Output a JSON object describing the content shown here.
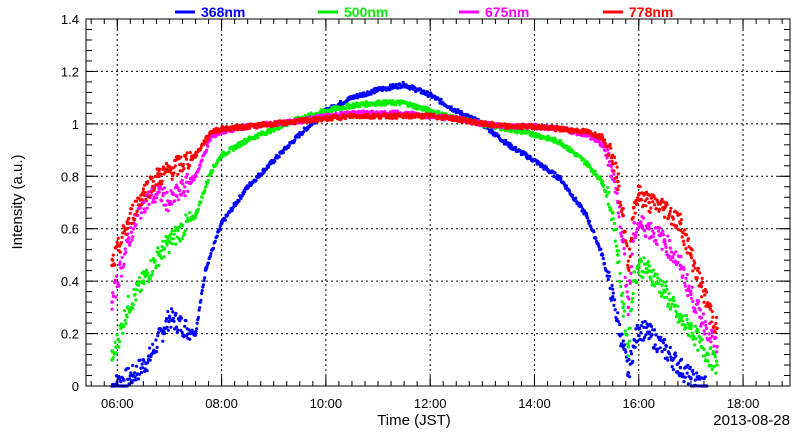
{
  "chart_data": {
    "type": "scatter",
    "title": "",
    "xlabel": "Time (JST)",
    "ylabel": "Intensity (a.u.)",
    "annotation": "2013-08-28",
    "xlim": [
      5.4,
      18.9
    ],
    "ylim": [
      0,
      1.4
    ],
    "x_ticks": [
      {
        "value": 6,
        "label": "06:00"
      },
      {
        "value": 8,
        "label": "08:00"
      },
      {
        "value": 10,
        "label": "10:00"
      },
      {
        "value": 12,
        "label": "12:00"
      },
      {
        "value": 14,
        "label": "14:00"
      },
      {
        "value": 16,
        "label": "16:00"
      },
      {
        "value": 18,
        "label": "18:00"
      }
    ],
    "y_ticks": [
      {
        "value": 0,
        "label": "0"
      },
      {
        "value": 0.2,
        "label": "0.2"
      },
      {
        "value": 0.4,
        "label": "0.4"
      },
      {
        "value": 0.6,
        "label": "0.6"
      },
      {
        "value": 0.8,
        "label": "0.8"
      },
      {
        "value": 1,
        "label": "1"
      },
      {
        "value": 1.2,
        "label": "1.2"
      },
      {
        "value": 1.4,
        "label": "1.4"
      }
    ],
    "grid": true,
    "legend_position": "top",
    "series": [
      {
        "name": "368nm",
        "color": "#0000ff",
        "x": [
          5.9,
          6.3,
          6.6,
          6.9,
          7.0,
          7.5,
          7.7,
          8.0,
          8.5,
          9.0,
          9.5,
          10.0,
          10.5,
          11.0,
          11.5,
          12.0,
          12.5,
          13.0,
          13.5,
          14.0,
          14.5,
          15.0,
          15.3,
          15.5,
          15.7,
          15.8,
          15.9,
          16.0,
          16.2,
          16.5,
          16.8,
          17.0,
          17.3
        ],
        "y": [
          0.0,
          0.04,
          0.1,
          0.22,
          0.26,
          0.2,
          0.45,
          0.62,
          0.76,
          0.86,
          0.96,
          1.05,
          1.1,
          1.13,
          1.15,
          1.11,
          1.05,
          1.0,
          0.92,
          0.86,
          0.79,
          0.65,
          0.5,
          0.34,
          0.15,
          0.05,
          0.15,
          0.22,
          0.2,
          0.14,
          0.07,
          0.03,
          0.0
        ]
      },
      {
        "name": "500nm",
        "color": "#00ee00",
        "x": [
          5.9,
          6.2,
          6.5,
          6.8,
          7.0,
          7.5,
          7.8,
          8.0,
          8.5,
          9.0,
          9.5,
          10.0,
          10.5,
          11.0,
          11.5,
          12.0,
          12.5,
          13.0,
          13.5,
          14.0,
          14.5,
          15.0,
          15.3,
          15.5,
          15.6,
          15.7,
          15.8,
          15.9,
          16.0,
          16.2,
          16.5,
          16.8,
          17.0,
          17.2,
          17.5
        ],
        "y": [
          0.1,
          0.3,
          0.4,
          0.5,
          0.55,
          0.65,
          0.82,
          0.88,
          0.94,
          0.98,
          1.02,
          1.05,
          1.07,
          1.08,
          1.08,
          1.05,
          1.02,
          1.0,
          0.98,
          0.96,
          0.93,
          0.85,
          0.78,
          0.66,
          0.5,
          0.3,
          0.15,
          0.4,
          0.46,
          0.44,
          0.36,
          0.25,
          0.22,
          0.15,
          0.08
        ]
      },
      {
        "name": "675nm",
        "color": "#ff00ff",
        "x": [
          5.9,
          6.2,
          6.5,
          6.8,
          7.0,
          7.5,
          7.8,
          8.0,
          8.5,
          9.0,
          9.5,
          10.0,
          10.5,
          11.0,
          11.5,
          12.0,
          12.5,
          13.0,
          13.5,
          14.0,
          14.5,
          15.0,
          15.3,
          15.5,
          15.6,
          15.7,
          15.8,
          15.9,
          16.0,
          16.2,
          16.5,
          16.8,
          17.0,
          17.2,
          17.5
        ],
        "y": [
          0.32,
          0.55,
          0.7,
          0.74,
          0.7,
          0.8,
          0.95,
          0.97,
          0.99,
          1.0,
          1.01,
          1.03,
          1.04,
          1.04,
          1.04,
          1.03,
          1.02,
          1.0,
          0.99,
          0.99,
          0.98,
          0.96,
          0.92,
          0.82,
          0.7,
          0.55,
          0.3,
          0.58,
          0.62,
          0.6,
          0.55,
          0.46,
          0.35,
          0.26,
          0.15
        ]
      },
      {
        "name": "778nm",
        "color": "#ff0000",
        "x": [
          5.9,
          6.2,
          6.5,
          6.8,
          7.0,
          7.5,
          7.8,
          8.0,
          8.5,
          9.0,
          9.5,
          10.0,
          10.5,
          11.0,
          11.5,
          12.0,
          12.5,
          13.0,
          13.5,
          14.0,
          14.5,
          15.0,
          15.3,
          15.5,
          15.6,
          15.7,
          15.8,
          15.9,
          16.0,
          16.2,
          16.5,
          16.8,
          17.0,
          17.2,
          17.5
        ],
        "y": [
          0.46,
          0.62,
          0.74,
          0.8,
          0.82,
          0.88,
          0.97,
          0.98,
          0.99,
          1.0,
          1.01,
          1.02,
          1.03,
          1.03,
          1.03,
          1.03,
          1.02,
          1.0,
          0.99,
          0.99,
          0.98,
          0.97,
          0.95,
          0.88,
          0.78,
          0.65,
          0.45,
          0.68,
          0.73,
          0.7,
          0.68,
          0.62,
          0.5,
          0.38,
          0.22
        ]
      }
    ]
  }
}
